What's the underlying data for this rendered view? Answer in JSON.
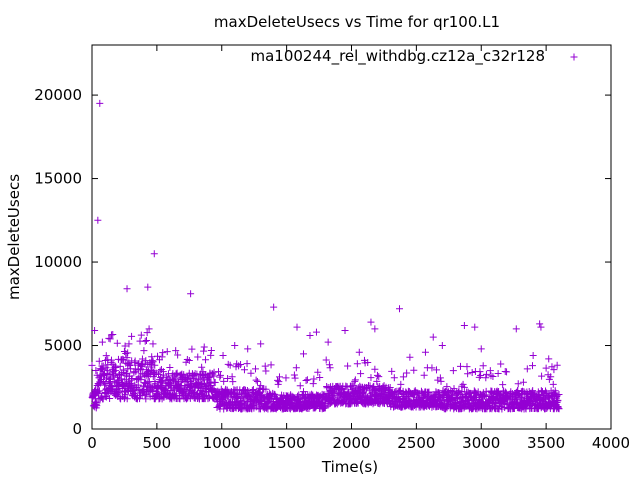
{
  "chart_data": {
    "type": "scatter",
    "title": "maxDeleteUsecs vs Time for qr100.L1",
    "xlabel": "Time(s)",
    "ylabel": "maxDeleteUsecs",
    "xlim": [
      0,
      4000
    ],
    "ylim": [
      0,
      23000
    ],
    "xticks": [
      "0",
      "500",
      "1000",
      "1500",
      "2000",
      "2500",
      "3000",
      "3500",
      "4000"
    ],
    "yticks": [
      "0",
      "5000",
      "10000",
      "15000",
      "20000"
    ],
    "legend_position": "top-right",
    "grid": false,
    "series": [
      {
        "name": "ma100244_rel_withdbg.cz12a_c32r128",
        "color": "#9400d3",
        "marker": "plus",
        "outliers": [
          [
            60,
            19500
          ],
          [
            45,
            12500
          ],
          [
            480,
            10500
          ],
          [
            270,
            8400
          ],
          [
            430,
            8500
          ],
          [
            760,
            8100
          ],
          [
            1400,
            7300
          ],
          [
            2370,
            7200
          ],
          [
            1580,
            6100
          ],
          [
            2150,
            6400
          ],
          [
            1950,
            5900
          ],
          [
            440,
            6000
          ],
          [
            20,
            5900
          ],
          [
            3450,
            6300
          ],
          [
            3460,
            6100
          ],
          [
            3270,
            6000
          ],
          [
            2870,
            6200
          ],
          [
            2950,
            6100
          ],
          [
            2180,
            6000
          ],
          [
            1730,
            5800
          ],
          [
            1680,
            5600
          ],
          [
            2630,
            5500
          ],
          [
            2570,
            4600
          ],
          [
            3000,
            4800
          ],
          [
            2700,
            5000
          ],
          [
            1100,
            5000
          ],
          [
            1200,
            4800
          ],
          [
            1300,
            5100
          ],
          [
            140,
            5400
          ],
          [
            80,
            5200
          ],
          [
            420,
            5300
          ],
          [
            470,
            5100
          ],
          [
            920,
            4700
          ],
          [
            1820,
            5200
          ],
          [
            3400,
            4400
          ],
          [
            3520,
            4200
          ],
          [
            2450,
            4300
          ],
          [
            2060,
            4600
          ],
          [
            1630,
            4500
          ],
          [
            1010,
            4400
          ]
        ],
        "bands": [
          {
            "x_start": 0,
            "x_end": 40,
            "y_low": 1200,
            "y_high": 2400
          },
          {
            "x_start": 40,
            "x_end": 500,
            "y_low": 1800,
            "y_high": 4200
          },
          {
            "x_start": 500,
            "x_end": 950,
            "y_low": 1800,
            "y_high": 3400
          },
          {
            "x_start": 950,
            "x_end": 1400,
            "y_low": 1200,
            "y_high": 2400
          },
          {
            "x_start": 1400,
            "x_end": 1800,
            "y_low": 1200,
            "y_high": 2100
          },
          {
            "x_start": 1800,
            "x_end": 2300,
            "y_low": 1500,
            "y_high": 2600
          },
          {
            "x_start": 2300,
            "x_end": 2700,
            "y_low": 1300,
            "y_high": 2300
          },
          {
            "x_start": 2700,
            "x_end": 3600,
            "y_low": 1200,
            "y_high": 2300
          }
        ]
      }
    ]
  }
}
